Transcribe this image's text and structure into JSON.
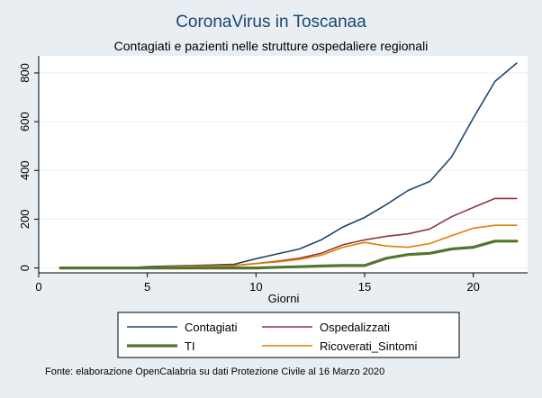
{
  "title": "CoronaVirus in Toscanaa",
  "subtitle": "Contagiati e pazienti nelle strutture ospedaliere regionali",
  "footnote": "Fonte: elaborazione OpenCalabria su dati Protezione Civile al 16 Marzo 2020",
  "colors": {
    "background": "#e9eef3",
    "plot_background": "#ffffff",
    "title": "#1a476f",
    "grid": "#e8eef3"
  },
  "chart_data": {
    "type": "line",
    "title": "CoronaVirus in Toscanaa",
    "subtitle": "Contagiati e pazienti nelle strutture ospedaliere regionali",
    "xlabel": "Giorni",
    "ylabel": "",
    "xlim": [
      0,
      22.5
    ],
    "ylim": [
      -20,
      870
    ],
    "xticks": [
      0,
      5,
      10,
      15,
      20
    ],
    "yticks": [
      0,
      200,
      400,
      600,
      800
    ],
    "grid": true,
    "legend_position": "bottom",
    "x": [
      1,
      2,
      3,
      4,
      5,
      6,
      7,
      8,
      9,
      10,
      11,
      12,
      13,
      14,
      15,
      16,
      17,
      18,
      19,
      20,
      21,
      22
    ],
    "series": [
      {
        "name": "Contagiati",
        "color": "#1a476f",
        "width": "thin",
        "values": [
          0,
          0,
          0,
          0,
          5,
          8,
          10,
          12,
          15,
          38,
          58,
          78,
          115,
          168,
          207,
          260,
          318,
          355,
          455,
          615,
          765,
          840
        ]
      },
      {
        "name": "Ospedalizzati",
        "color": "#90353b",
        "width": "thin",
        "values": [
          0,
          0,
          0,
          0,
          2,
          5,
          7,
          8,
          10,
          18,
          28,
          40,
          60,
          95,
          115,
          130,
          140,
          160,
          210,
          248,
          285,
          285
        ]
      },
      {
        "name": "TI",
        "color": "#55752f",
        "width": "thick",
        "values": [
          0,
          0,
          0,
          0,
          0,
          0,
          0,
          0,
          0,
          0,
          3,
          5,
          8,
          10,
          10,
          40,
          55,
          60,
          78,
          85,
          110,
          110
        ]
      },
      {
        "name": "Ricoverati_Sintomi",
        "color": "#e37e00",
        "width": "thin",
        "values": [
          0,
          0,
          0,
          0,
          2,
          5,
          7,
          8,
          10,
          18,
          25,
          35,
          52,
          85,
          105,
          90,
          85,
          100,
          132,
          163,
          175,
          175
        ]
      }
    ]
  }
}
